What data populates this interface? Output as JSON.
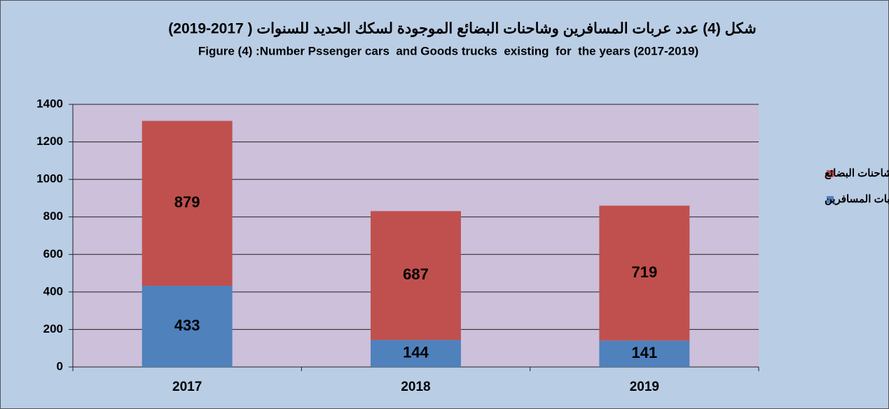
{
  "chart_data": {
    "type": "stacked_bar",
    "title": "شكل (4) عدد عربات المسافرين وشاحنات البضائع الموجودة لسكك الحديد للسنوات ( 2017-2019)",
    "subtitle": "Figure (4) :Number Pssenger cars  and Goods trucks  existing  for  the years (2017-2019)",
    "categories": [
      "2017",
      "2018",
      "2019"
    ],
    "series": [
      {
        "name": "عربات المسافرين",
        "color": "#4f81bd",
        "values": [
          433,
          144,
          141
        ]
      },
      {
        "name": "شاحنات البضائع",
        "color": "#c0504d",
        "values": [
          879,
          687,
          719
        ]
      }
    ],
    "ylim": [
      0,
      1400
    ],
    "yticks": [
      0,
      200,
      400,
      600,
      800,
      1000,
      1200,
      1400
    ],
    "grid": true,
    "legend": "right"
  }
}
